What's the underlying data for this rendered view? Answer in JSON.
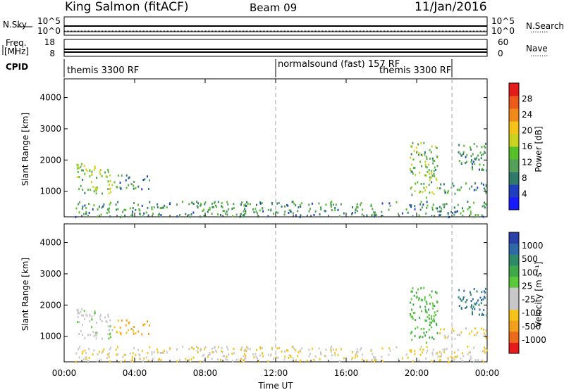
{
  "header": {
    "station": "King Salmon (fitACF)",
    "beam": "Beam 09",
    "date": "11/Jan/2016"
  },
  "side_labels": {
    "nsky": "N.Sky",
    "freq_line1": "Freq.",
    "freq_line2": "[MHz]",
    "cpid": "CPID",
    "nsearch": "N.Search",
    "nave": "Nave",
    "dots": "........"
  },
  "top_panels": {
    "nsky_ticks": [
      "10^5",
      "10^0"
    ],
    "nsearch_ticks": [
      "10^5",
      "10^0"
    ],
    "freq_ticks": [
      "18",
      "8"
    ],
    "nave_ticks": [
      "60",
      "0"
    ]
  },
  "cpid_segments": [
    {
      "label": "themis 3300 RF"
    },
    {
      "label": "normalsound (fast) 157 RF"
    },
    {
      "label": "themis 3300 RF"
    }
  ],
  "x_axis": {
    "label": "Time UT",
    "ticks": [
      "00:00",
      "04:00",
      "08:00",
      "12:00",
      "16:00",
      "20:00",
      "00:00"
    ],
    "hours": [
      0,
      4,
      8,
      12,
      16,
      20,
      24
    ]
  },
  "power_scale": {
    "label": "Power [dB]",
    "ticks": [
      "4",
      "8",
      "12",
      "16",
      "20",
      "24",
      "28"
    ],
    "colors": [
      "#1a1aff",
      "#1f3fbf",
      "#2f7a6a",
      "#55a15a",
      "#55c02a",
      "#c8d21f",
      "#f5c31a",
      "#f08a1c",
      "#ec5a1c",
      "#e51c1c"
    ]
  },
  "velocity_scale": {
    "label": "Velocity [m s⁻¹]",
    "ticks": [
      "1000",
      "500",
      "100",
      "25",
      "-25",
      "-100",
      "-500",
      "-1000"
    ],
    "colors": [
      "#2a3fa8",
      "#2f6aa8",
      "#2f8a6a",
      "#3fa84a",
      "#5ac83a",
      "#c8c8c8",
      "#c8c8c8",
      "#f5c31a",
      "#f0a01c",
      "#ec6a1c",
      "#e51c1c"
    ]
  },
  "chart_data": {
    "type": "heatmap",
    "x_unit": "hours UT",
    "x_range": [
      0,
      24
    ],
    "y_label": "Slant Range [km]",
    "y_ticks": [
      1000,
      2000,
      3000,
      4000
    ],
    "y_range": [
      180,
      4600
    ],
    "cpid_boundaries_hours": [
      12.0,
      22.0
    ],
    "top_series": [
      {
        "name": "N.Sky",
        "scale": "log",
        "ticks": [
          "10^5",
          "10^0"
        ]
      },
      {
        "name": "Freq. [MHz]",
        "ylim": [
          8,
          18
        ]
      },
      {
        "name": "N.Search",
        "scale": "log",
        "ticks": [
          "10^5",
          "10^0"
        ]
      },
      {
        "name": "Nave",
        "ylim": [
          0,
          60
        ]
      }
    ],
    "echo_regions": [
      {
        "t_start": 0.6,
        "t_end": 2.8,
        "range_low": 950,
        "range_high": 1900,
        "power_db": 12,
        "velocity": 25
      },
      {
        "t_start": 2.8,
        "t_end": 4.8,
        "range_low": 1050,
        "range_high": 1550,
        "power_db": 8,
        "velocity": -100
      },
      {
        "t_start": 0.6,
        "t_end": 24.0,
        "range_low": 200,
        "range_high": 700,
        "power_db": 8,
        "velocity": -25
      },
      {
        "t_start": 19.6,
        "t_end": 21.2,
        "range_low": 800,
        "range_high": 2600,
        "power_db": 12,
        "velocity": 100
      },
      {
        "t_start": 21.2,
        "t_end": 24.0,
        "range_low": 950,
        "range_high": 1300,
        "power_db": 8,
        "velocity": -25
      },
      {
        "t_start": 22.2,
        "t_end": 24.0,
        "range_low": 1700,
        "range_high": 2600,
        "power_db": 8,
        "velocity": 500
      }
    ],
    "panels": [
      {
        "name": "Power",
        "unit": "dB",
        "colorbar_ticks": [
          4,
          8,
          12,
          16,
          20,
          24,
          28
        ]
      },
      {
        "name": "Velocity",
        "unit": "m s-1",
        "colorbar_ticks": [
          1000,
          500,
          100,
          25,
          -25,
          -100,
          -500,
          -1000
        ]
      }
    ]
  }
}
